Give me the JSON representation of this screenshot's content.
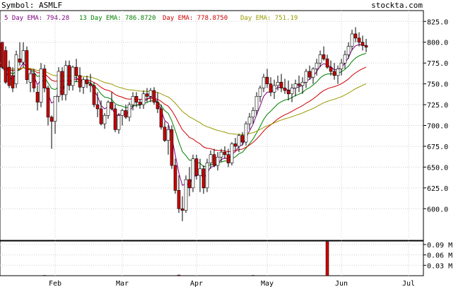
{
  "header": {
    "symbol_label": "Symbol: ASMLF",
    "site": "stockta.com"
  },
  "legend": [
    {
      "label": "5 Day EMA: 794.28",
      "color": "#800080"
    },
    {
      "label": "13 Day EMA: 786.8720",
      "color": "#008000"
    },
    {
      "label": "Day EMA: 778.8750",
      "color": "#cc0000"
    },
    {
      "label": "Day EMA: 751.19",
      "color": "#999900"
    }
  ],
  "chart_data": [
    {
      "type": "candlestick",
      "title": "Symbol: ASMLF",
      "ylim": [
        562,
        838
      ],
      "y_ticks": [
        600,
        625,
        650,
        675,
        700,
        725,
        750,
        775,
        800,
        825
      ],
      "y_tick_labels": [
        "600.0",
        "625.0",
        "650.0",
        "675.0",
        "700.0",
        "725.0",
        "750.0",
        "775.0",
        "800.0",
        "825.0"
      ],
      "x_month_labels": [
        {
          "label": "Feb",
          "index": 15
        },
        {
          "label": "Mar",
          "index": 34
        },
        {
          "label": "Apr",
          "index": 55
        },
        {
          "label": "May",
          "index": 75
        },
        {
          "label": "Jun",
          "index": 96
        },
        {
          "label": "Jul",
          "index": 115
        }
      ],
      "up_color": "#ffffff",
      "down_color": "#cc0000",
      "candles": [
        [
          800,
          800,
          768,
          770
        ],
        [
          790,
          795,
          750,
          752
        ],
        [
          770,
          778,
          745,
          748
        ],
        [
          760,
          770,
          740,
          745
        ],
        [
          750,
          790,
          745,
          785
        ],
        [
          780,
          800,
          772,
          776
        ],
        [
          776,
          800,
          770,
          790
        ],
        [
          790,
          795,
          750,
          755
        ],
        [
          752,
          765,
          740,
          762
        ],
        [
          762,
          768,
          740,
          745
        ],
        [
          740,
          748,
          718,
          728
        ],
        [
          728,
          775,
          722,
          768
        ],
        [
          768,
          773,
          740,
          745
        ],
        [
          745,
          748,
          700,
          710
        ],
        [
          710,
          712,
          672,
          705
        ],
        [
          705,
          735,
          690,
          735
        ],
        [
          735,
          770,
          728,
          765
        ],
        [
          765,
          770,
          730,
          737
        ],
        [
          737,
          778,
          730,
          772
        ],
        [
          772,
          778,
          742,
          748
        ],
        [
          748,
          772,
          742,
          770
        ],
        [
          770,
          780,
          752,
          760
        ],
        [
          760,
          770,
          740,
          746
        ],
        [
          746,
          758,
          738,
          755
        ],
        [
          755,
          760,
          745,
          750
        ],
        [
          750,
          762,
          740,
          748
        ],
        [
          748,
          752,
          722,
          725
        ],
        [
          725,
          740,
          710,
          720
        ],
        [
          720,
          730,
          700,
          702
        ],
        [
          702,
          715,
          696,
          712
        ],
        [
          712,
          730,
          708,
          728
        ],
        [
          728,
          740,
          718,
          720
        ],
        [
          720,
          725,
          692,
          695
        ],
        [
          695,
          715,
          690,
          712
        ],
        [
          712,
          720,
          700,
          718
        ],
        [
          718,
          725,
          708,
          710
        ],
        [
          710,
          728,
          705,
          725
        ],
        [
          725,
          740,
          718,
          735
        ],
        [
          735,
          740,
          722,
          728
        ],
        [
          728,
          732,
          720,
          725
        ],
        [
          725,
          742,
          720,
          738
        ],
        [
          738,
          745,
          728,
          735
        ],
        [
          735,
          745,
          728,
          742
        ],
        [
          742,
          746,
          725,
          728
        ],
        [
          728,
          740,
          715,
          720
        ],
        [
          720,
          725,
          695,
          698
        ],
        [
          698,
          705,
          680,
          682
        ],
        [
          682,
          700,
          665,
          695
        ],
        [
          695,
          700,
          648,
          652
        ],
        [
          652,
          660,
          618,
          622
        ],
        [
          622,
          640,
          595,
          600
        ],
        [
          600,
          615,
          585,
          598
        ],
        [
          598,
          640,
          595,
          635
        ],
        [
          635,
          650,
          615,
          625
        ],
        [
          625,
          665,
          620,
          660
        ],
        [
          660,
          665,
          635,
          640
        ],
        [
          640,
          660,
          620,
          648
        ],
        [
          648,
          652,
          618,
          625
        ],
        [
          625,
          660,
          620,
          655
        ],
        [
          655,
          670,
          648,
          665
        ],
        [
          665,
          672,
          650,
          652
        ],
        [
          652,
          668,
          646,
          662
        ],
        [
          662,
          672,
          656,
          668
        ],
        [
          668,
          675,
          660,
          665
        ],
        [
          665,
          672,
          650,
          655
        ],
        [
          655,
          680,
          652,
          678
        ],
        [
          678,
          685,
          670,
          675
        ],
        [
          675,
          690,
          668,
          688
        ],
        [
          688,
          692,
          676,
          680
        ],
        [
          680,
          705,
          676,
          702
        ],
        [
          702,
          715,
          695,
          710
        ],
        [
          710,
          722,
          702,
          718
        ],
        [
          718,
          740,
          712,
          735
        ],
        [
          735,
          748,
          728,
          745
        ],
        [
          745,
          762,
          740,
          758
        ],
        [
          758,
          768,
          745,
          750
        ],
        [
          750,
          758,
          735,
          740
        ],
        [
          740,
          755,
          732,
          748
        ],
        [
          748,
          760,
          742,
          752
        ],
        [
          752,
          762,
          740,
          745
        ],
        [
          745,
          756,
          738,
          742
        ],
        [
          742,
          754,
          730,
          738
        ],
        [
          738,
          750,
          728,
          745
        ],
        [
          745,
          755,
          735,
          750
        ],
        [
          750,
          760,
          740,
          748
        ],
        [
          748,
          758,
          738,
          752
        ],
        [
          752,
          768,
          745,
          765
        ],
        [
          765,
          772,
          755,
          758
        ],
        [
          758,
          770,
          750,
          768
        ],
        [
          768,
          780,
          760,
          775
        ],
        [
          775,
          790,
          770,
          785
        ],
        [
          785,
          795,
          778,
          780
        ],
        [
          780,
          785,
          768,
          770
        ],
        [
          770,
          778,
          760,
          765
        ],
        [
          765,
          775,
          755,
          760
        ],
        [
          760,
          772,
          750,
          768
        ],
        [
          768,
          780,
          760,
          775
        ],
        [
          775,
          790,
          768,
          785
        ],
        [
          785,
          800,
          780,
          795
        ],
        [
          795,
          815,
          790,
          810
        ],
        [
          810,
          818,
          800,
          805
        ],
        [
          805,
          812,
          795,
          800
        ],
        [
          800,
          808,
          790,
          796
        ],
        [
          796,
          804,
          788,
          794
        ]
      ],
      "ema_series": [
        {
          "name": "5 Day EMA",
          "color": "#800080",
          "end": 794.28
        },
        {
          "name": "13 Day EMA",
          "color": "#008000",
          "end": 786.872
        },
        {
          "name": "Day EMA",
          "color": "#cc0000",
          "end": 778.875
        },
        {
          "name": "Day EMA",
          "color": "#999900",
          "end": 751.19
        }
      ]
    },
    {
      "type": "bar",
      "ylim": [
        0,
        0.1
      ],
      "y_ticks": [
        0.03,
        0.06,
        0.09
      ],
      "y_tick_labels": [
        "0.03 M",
        "0.06 M",
        "0.09 M"
      ],
      "bar_color": "#cc0000",
      "volume": [
        0,
        0,
        0,
        0,
        0,
        0,
        0,
        0,
        0,
        0,
        0,
        0,
        0.001,
        0,
        0,
        0,
        0,
        0,
        0,
        0,
        0,
        0,
        0,
        0,
        0,
        0,
        0,
        0,
        0,
        0,
        0,
        0,
        0,
        0,
        0,
        0,
        0,
        0,
        0,
        0,
        0,
        0,
        0,
        0,
        0,
        0,
        0,
        0,
        0,
        0,
        0.002,
        0,
        0,
        0,
        0,
        0,
        0,
        0,
        0,
        0,
        0,
        0,
        0,
        0,
        0,
        0,
        0,
        0,
        0,
        0,
        0,
        0.001,
        0,
        0,
        0,
        0,
        0,
        0,
        0,
        0,
        0,
        0,
        0,
        0,
        0,
        0,
        0,
        0,
        0,
        0,
        0,
        0,
        0.098,
        0,
        0,
        0,
        0,
        0,
        0,
        0,
        0,
        0,
        0,
        0
      ]
    }
  ]
}
